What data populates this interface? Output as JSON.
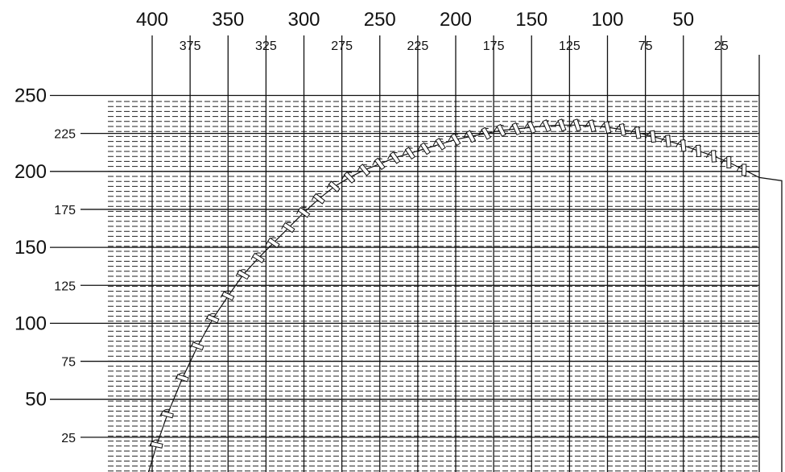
{
  "chart_data": {
    "type": "line",
    "x_axis": {
      "position": "top",
      "direction": "decreasing-left-to-right",
      "major_ticks": [
        400,
        350,
        300,
        250,
        200,
        150,
        100,
        50
      ],
      "minor_ticks": [
        375,
        325,
        275,
        225,
        175,
        125,
        75,
        25
      ],
      "range": [
        0,
        400
      ]
    },
    "y_axis": {
      "position": "left",
      "major_ticks": [
        250,
        200,
        150,
        100,
        50
      ],
      "minor_ticks": [
        225,
        175,
        125,
        75,
        25
      ],
      "range": [
        0,
        250
      ]
    },
    "grid": "vertical solid lines at every x tick; dense horizontal dashed lines",
    "series": [
      {
        "points": [
          [
            403,
            0
          ],
          [
            397,
            20
          ],
          [
            390,
            40
          ],
          [
            380,
            64
          ],
          [
            370,
            85
          ],
          [
            360,
            103
          ],
          [
            350,
            118
          ],
          [
            340,
            132
          ],
          [
            330,
            143
          ],
          [
            320,
            153
          ],
          [
            310,
            163
          ],
          [
            300,
            173
          ],
          [
            290,
            182
          ],
          [
            280,
            190
          ],
          [
            270,
            196
          ],
          [
            260,
            201
          ],
          [
            250,
            205
          ],
          [
            240,
            209
          ],
          [
            230,
            212
          ],
          [
            220,
            215
          ],
          [
            210,
            218
          ],
          [
            200,
            221
          ],
          [
            190,
            223
          ],
          [
            180,
            225
          ],
          [
            170,
            227
          ],
          [
            160,
            228
          ],
          [
            150,
            229
          ],
          [
            140,
            230
          ],
          [
            130,
            230.5
          ],
          [
            120,
            230.5
          ],
          [
            110,
            230
          ],
          [
            100,
            229
          ],
          [
            90,
            227.5
          ],
          [
            80,
            225.5
          ],
          [
            70,
            223
          ],
          [
            60,
            220
          ],
          [
            50,
            217
          ],
          [
            40,
            213.5
          ],
          [
            30,
            210
          ],
          [
            20,
            206
          ],
          [
            10,
            201
          ],
          [
            0,
            196
          ]
        ]
      }
    ]
  }
}
